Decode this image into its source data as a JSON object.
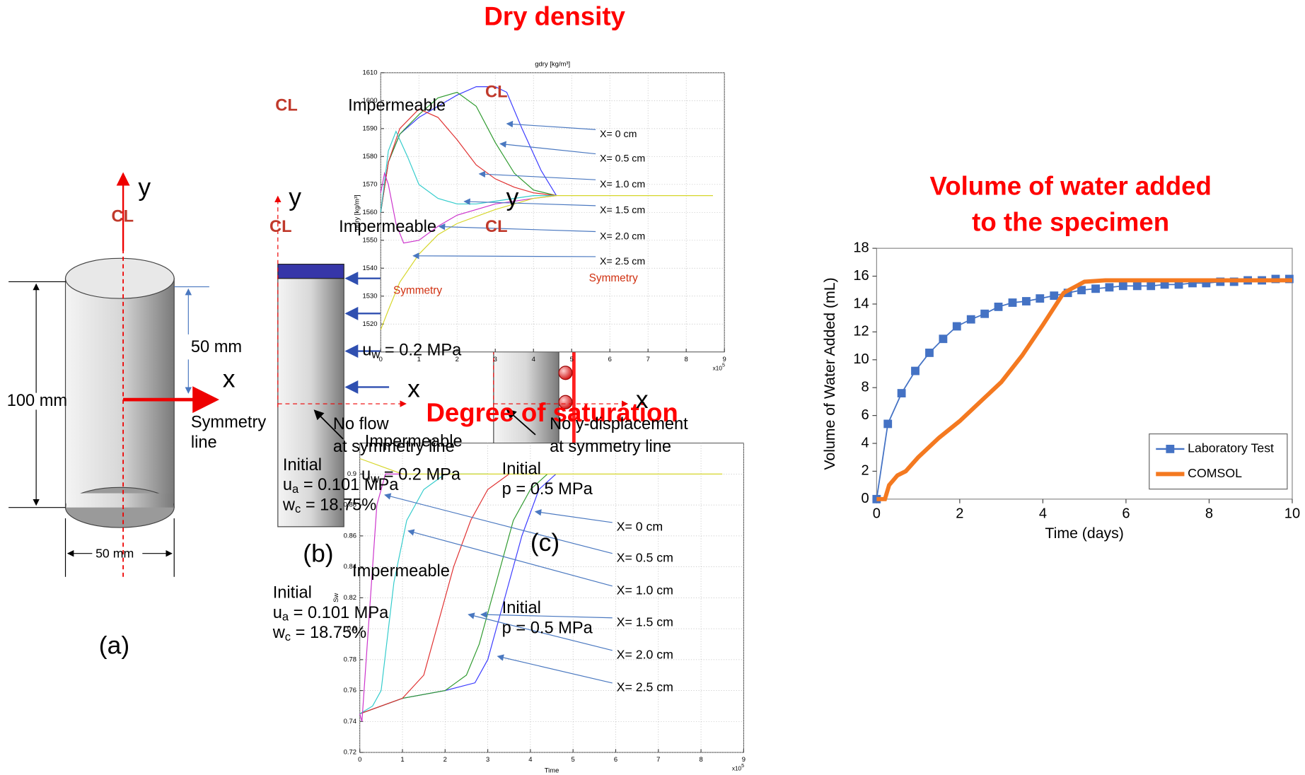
{
  "chart_data": [
    {
      "type": "line",
      "title": [
        "Volume of water added",
        "to the specimen"
      ],
      "xlabel": "Time (days)",
      "ylabel": "Volume of Water Added (mL)",
      "xlim": [
        0,
        10
      ],
      "xticks": [
        0,
        2,
        4,
        6,
        8,
        10
      ],
      "ylim": [
        0,
        18
      ],
      "yticks": [
        0,
        2,
        4,
        6,
        8,
        10,
        12,
        14,
        16,
        18
      ],
      "grid": false,
      "legend": "lower right",
      "series": [
        {
          "name": "Laboratory Test",
          "color": "#4472c4",
          "marker": "square",
          "x": [
            0,
            0.27,
            0.6,
            0.93,
            1.27,
            1.6,
            1.93,
            2.27,
            2.6,
            2.93,
            3.27,
            3.6,
            3.93,
            4.27,
            4.6,
            4.93,
            5.27,
            5.6,
            5.93,
            6.27,
            6.6,
            6.93,
            7.27,
            7.6,
            7.93,
            8.27,
            8.6,
            8.93,
            9.27,
            9.6,
            9.93
          ],
          "values": [
            0,
            5.4,
            7.6,
            9.2,
            10.5,
            11.5,
            12.4,
            12.9,
            13.3,
            13.8,
            14.1,
            14.2,
            14.4,
            14.6,
            14.8,
            15.0,
            15.1,
            15.2,
            15.3,
            15.3,
            15.3,
            15.4,
            15.4,
            15.5,
            15.5,
            15.6,
            15.6,
            15.7,
            15.7,
            15.8,
            15.8
          ]
        },
        {
          "name": "COMSOL",
          "color": "#f47920",
          "x": [
            0,
            0.2,
            0.3,
            0.5,
            0.7,
            1,
            1.5,
            2,
            2.5,
            3,
            3.5,
            4,
            4.5,
            5,
            5.5,
            6,
            7,
            8,
            9,
            10
          ],
          "values": [
            0,
            0,
            1,
            1.7,
            2,
            3,
            4.4,
            5.6,
            7,
            8.4,
            10.3,
            12.5,
            14.8,
            15.6,
            15.7,
            15.7,
            15.7,
            15.7,
            15.7,
            15.7
          ]
        }
      ]
    },
    {
      "type": "line",
      "title": "Dry density",
      "plot_title": "gdry [kg/m³]",
      "ylabel": "gdry [kg/m³]",
      "x_multiplier": "x10",
      "x_multiplier_exp": "5",
      "xlim": [
        0,
        9
      ],
      "xticks": [
        0,
        1,
        2,
        3,
        4,
        5,
        6,
        7,
        8,
        9
      ],
      "ylim": [
        1510,
        1610
      ],
      "yticks": [
        1520,
        1530,
        1540,
        1550,
        1560,
        1570,
        1580,
        1590,
        1600,
        1610
      ],
      "grid": true,
      "series": [
        {
          "name": "X= 0 cm",
          "color": "#3b3bff",
          "x": [
            0,
            0.2,
            0.5,
            1,
            1.5,
            2,
            2.5,
            3,
            3.3,
            3.7,
            4.2,
            4.6
          ],
          "values": [
            1560,
            1578,
            1588,
            1594,
            1598,
            1602,
            1605,
            1605,
            1603,
            1590,
            1575,
            1566
          ]
        },
        {
          "name": "X= 0.5 cm",
          "color": "#2e9a2e",
          "x": [
            0,
            0.2,
            0.5,
            1,
            1.5,
            2,
            2.5,
            3,
            3.5,
            4,
            4.6
          ],
          "values": [
            1560,
            1578,
            1588,
            1595,
            1601,
            1603,
            1598,
            1585,
            1574,
            1568,
            1566
          ]
        },
        {
          "name": "X= 1.0 cm",
          "color": "#e03030",
          "x": [
            0,
            0.2,
            0.5,
            1,
            1.5,
            2,
            2.5,
            3,
            3.5,
            4,
            4.6
          ],
          "values": [
            1560,
            1578,
            1590,
            1597,
            1594,
            1586,
            1577,
            1572,
            1569,
            1567,
            1566
          ]
        },
        {
          "name": "X= 1.5 cm",
          "color": "#33cccc",
          "x": [
            0,
            0.2,
            0.4,
            0.7,
            1,
            1.5,
            2,
            2.5,
            3,
            4,
            4.6
          ],
          "values": [
            1560,
            1582,
            1589,
            1580,
            1570,
            1565,
            1563,
            1563,
            1564,
            1566,
            1566
          ]
        },
        {
          "name": "X= 2.0 cm",
          "color": "#cc33cc",
          "x": [
            0,
            0.1,
            0.2,
            0.4,
            0.6,
            1,
            1.5,
            2,
            3,
            4,
            4.6
          ],
          "values": [
            1567,
            1574,
            1570,
            1556,
            1549,
            1550,
            1555,
            1559,
            1563,
            1565,
            1566
          ]
        },
        {
          "name": "X= 2.5 cm",
          "color": "#d6d62a",
          "x": [
            0,
            0.2,
            0.5,
            1,
            1.5,
            2,
            3,
            4,
            4.6,
            8.7
          ],
          "values": [
            1518,
            1525,
            1535,
            1545,
            1552,
            1556,
            1561,
            1565,
            1566,
            1566
          ]
        }
      ]
    },
    {
      "type": "line",
      "title": "Degree of saturation",
      "xlabel": "Time",
      "ylabel": "Sw",
      "x_multiplier": "x10",
      "x_multiplier_exp": "5",
      "xlim": [
        0,
        9
      ],
      "xticks": [
        0,
        1,
        2,
        3,
        4,
        5,
        6,
        7,
        8,
        9
      ],
      "ylim": [
        0.72,
        0.92
      ],
      "yticks": [
        0.72,
        0.74,
        0.76,
        0.78,
        0.8,
        0.82,
        0.84,
        0.86,
        0.88,
        0.9
      ],
      "grid": true,
      "series": [
        {
          "name": "X= 0 cm",
          "color": "#3b3bff",
          "x": [
            0,
            1,
            2,
            2.7,
            3,
            3.4,
            3.8,
            4.2,
            4.6
          ],
          "values": [
            0.745,
            0.755,
            0.76,
            0.765,
            0.78,
            0.82,
            0.86,
            0.89,
            0.9
          ]
        },
        {
          "name": "X= 0.5 cm",
          "color": "#2e9a2e",
          "x": [
            0,
            1,
            2,
            2.5,
            2.8,
            3.2,
            3.6,
            4,
            4.4
          ],
          "values": [
            0.745,
            0.755,
            0.76,
            0.77,
            0.79,
            0.83,
            0.87,
            0.89,
            0.9
          ]
        },
        {
          "name": "X= 1.0 cm",
          "color": "#e03030",
          "x": [
            0,
            0.5,
            1,
            1.5,
            1.8,
            2.2,
            2.6,
            3,
            3.5
          ],
          "values": [
            0.745,
            0.75,
            0.755,
            0.77,
            0.8,
            0.84,
            0.87,
            0.89,
            0.9
          ]
        },
        {
          "name": "X= 1.5 cm",
          "color": "#33cccc",
          "x": [
            0,
            0.3,
            0.5,
            0.8,
            1.1,
            1.5,
            2,
            3
          ],
          "values": [
            0.745,
            0.75,
            0.76,
            0.83,
            0.87,
            0.89,
            0.9,
            0.9
          ]
        },
        {
          "name": "X= 2.0 cm",
          "color": "#cc33cc",
          "x": [
            0,
            0.05,
            0.2,
            0.4,
            0.6,
            1
          ],
          "values": [
            0.745,
            0.74,
            0.8,
            0.88,
            0.9,
            0.9
          ]
        },
        {
          "name": "X= 2.5 cm",
          "color": "#d6d62a",
          "x": [
            0,
            0.5,
            1,
            8.5
          ],
          "values": [
            0.91,
            0.905,
            0.9,
            0.9
          ]
        }
      ]
    }
  ],
  "diagram": {
    "labels": [
      "y",
      "CL",
      "50 mm",
      "x",
      "100 mm",
      "Symmetry",
      "line",
      "50 mm",
      "(a)",
      "CL",
      "Impermeable",
      "y",
      "CL",
      "Impermeable",
      "x",
      "No flow",
      "at symmetry line",
      "Impermeable",
      "Initial",
      "(b)",
      "Impermeable",
      "Initial",
      "y",
      "CL",
      "Symmetry",
      "x",
      "No y-displacement",
      "at symmetry line",
      "Initial",
      "p = 0.5 MPa",
      "(c)",
      "Initial",
      "p = 0.5 MPa",
      "CL",
      "Symmetry"
    ],
    "sub_labels": [
      {
        "main": "u",
        "sub": "w",
        "rest": " = 0.2 MPa"
      },
      {
        "main": "u",
        "sub": "a",
        "rest": " = 0.101 MPa"
      },
      {
        "main": "w",
        "sub": "c",
        "rest": " = 18.75%"
      },
      {
        "main": "u",
        "sub": "w",
        "rest": " = 0.2 MPa"
      },
      {
        "main": "u",
        "sub": "a",
        "rest": " = 0.101 MPa"
      },
      {
        "main": "w",
        "sub": "c",
        "rest": " = 18.75%"
      }
    ]
  }
}
